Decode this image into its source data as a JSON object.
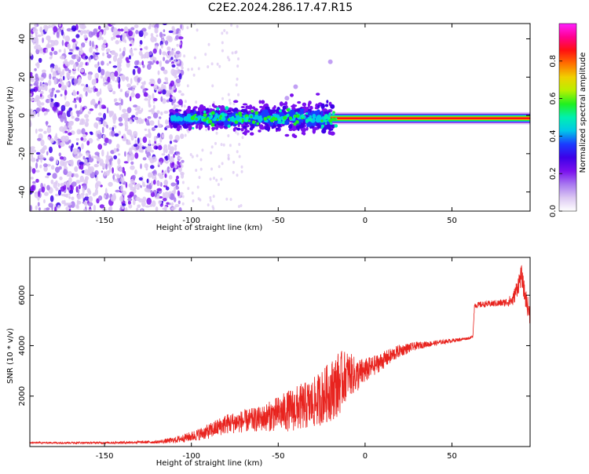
{
  "title": "C2E2.2024.286.17.47.R15",
  "colors": {
    "axis": "#000000",
    "snr_line": "#e8231e"
  },
  "colormap": [
    "#ffffff",
    "#dcc8f2",
    "#a878f0",
    "#7a10ee",
    "#3d00e8",
    "#1a3cff",
    "#00c8e8",
    "#00f0b0",
    "#20f020",
    "#b8f000",
    "#f0d000",
    "#ff7000",
    "#ff1010",
    "#ff0090",
    "#ff20ff"
  ],
  "chart_data": [
    {
      "type": "heatmap",
      "xlabel": "Height of straight line (km)",
      "ylabel": "Frequency (Hz)",
      "xlim": [
        -193,
        95
      ],
      "ylim": [
        -50,
        48
      ],
      "xticks": [
        -150,
        -100,
        -50,
        0,
        50
      ],
      "yticks": [
        -40,
        -20,
        0,
        20,
        40
      ],
      "colorbar": {
        "label": "Normalized spectral amplitude",
        "range": [
          0,
          1
        ],
        "ticks": [
          "0.0",
          "0.2",
          "0.4",
          "0.6",
          "0.8"
        ]
      },
      "features": {
        "noise_region_x": [
          -193,
          -110
        ],
        "main_trace_freq_hz": -1.5,
        "main_trace_x": [
          -20,
          95
        ],
        "spread_region_x": [
          -112,
          -18
        ],
        "spread_region_half_width_hz": 8
      }
    },
    {
      "type": "line",
      "xlabel": "Height of straight line (km)",
      "ylabel": "SNR (10 * v/v)",
      "xlim": [
        -193,
        95
      ],
      "ylim": [
        0,
        7500
      ],
      "xticks": [
        -150,
        -100,
        -50,
        0,
        50
      ],
      "yticks": [
        2000,
        4000,
        6000
      ],
      "series": [
        {
          "x": [
            -193,
            -150,
            -120,
            -110,
            -100,
            -90,
            -80,
            -70,
            -60,
            -50,
            -40,
            -30,
            -20,
            -15,
            -10,
            -5,
            0,
            5,
            10,
            15,
            20,
            30,
            40,
            50,
            55,
            60,
            62,
            63,
            70,
            80,
            85,
            88,
            90,
            92,
            95
          ],
          "y": [
            150,
            150,
            180,
            250,
            400,
            600,
            900,
            1000,
            1100,
            1300,
            1500,
            1700,
            2200,
            2500,
            2900,
            2800,
            3000,
            3200,
            3400,
            3600,
            3800,
            4000,
            4100,
            4200,
            4250,
            4300,
            4350,
            5600,
            5650,
            5700,
            5800,
            6400,
            6800,
            6000,
            5200
          ],
          "noise": [
            30,
            40,
            60,
            120,
            200,
            300,
            400,
            450,
            500,
            700,
            900,
            1000,
            1200,
            1300,
            900,
            700,
            500,
            400,
            350,
            300,
            250,
            150,
            100,
            80,
            60,
            50,
            50,
            120,
            120,
            150,
            250,
            400,
            400,
            400,
            400
          ]
        }
      ]
    }
  ]
}
